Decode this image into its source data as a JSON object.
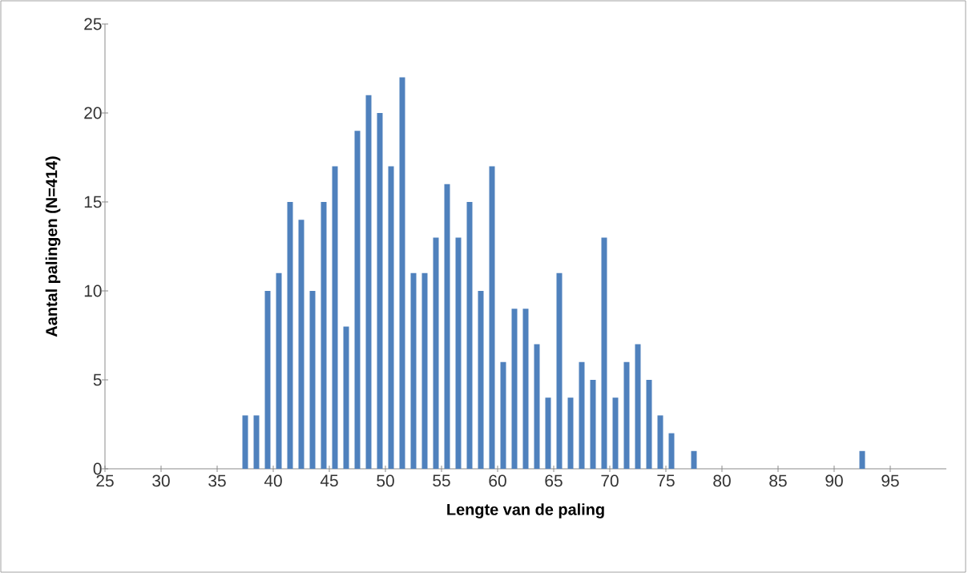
{
  "chart_data": {
    "type": "histogram",
    "xlabel": "Lengte van de paling",
    "ylabel": "Aantal palingen (N=414)",
    "bins": [
      25,
      26,
      27,
      28,
      29,
      30,
      31,
      32,
      33,
      34,
      35,
      36,
      37,
      38,
      39,
      40,
      41,
      42,
      43,
      44,
      45,
      46,
      47,
      48,
      49,
      50,
      51,
      52,
      53,
      54,
      55,
      56,
      57,
      58,
      59,
      60,
      61,
      62,
      63,
      64,
      65,
      66,
      67,
      68,
      69,
      70,
      71,
      72,
      73,
      74,
      75,
      76,
      77,
      78,
      79,
      80,
      81,
      82,
      83,
      84,
      85,
      86,
      87,
      88,
      89,
      90,
      91,
      92,
      93,
      94,
      95,
      96,
      97,
      98,
      99,
      100
    ],
    "values": [
      0,
      0,
      0,
      0,
      0,
      0,
      0,
      0,
      0,
      0,
      0,
      0,
      3,
      3,
      10,
      11,
      15,
      14,
      10,
      15,
      17,
      8,
      19,
      21,
      20,
      17,
      22,
      11,
      11,
      13,
      16,
      13,
      15,
      10,
      17,
      6,
      9,
      9,
      7,
      4,
      11,
      4,
      6,
      5,
      13,
      4,
      6,
      7,
      5,
      3,
      2,
      0,
      1,
      0,
      0,
      0,
      0,
      0,
      0,
      0,
      0,
      0,
      0,
      0,
      0,
      0,
      0,
      1,
      0,
      0,
      0,
      0,
      0,
      0,
      0
    ],
    "color": "#4f81bd",
    "xlim": [
      25,
      100
    ],
    "xticks": [
      25,
      30,
      35,
      40,
      45,
      50,
      55,
      60,
      65,
      70,
      75,
      80,
      85,
      90,
      95
    ],
    "ylim": [
      0,
      25
    ],
    "yticks": [
      0,
      5,
      10,
      15,
      20,
      25
    ],
    "grid": false
  }
}
